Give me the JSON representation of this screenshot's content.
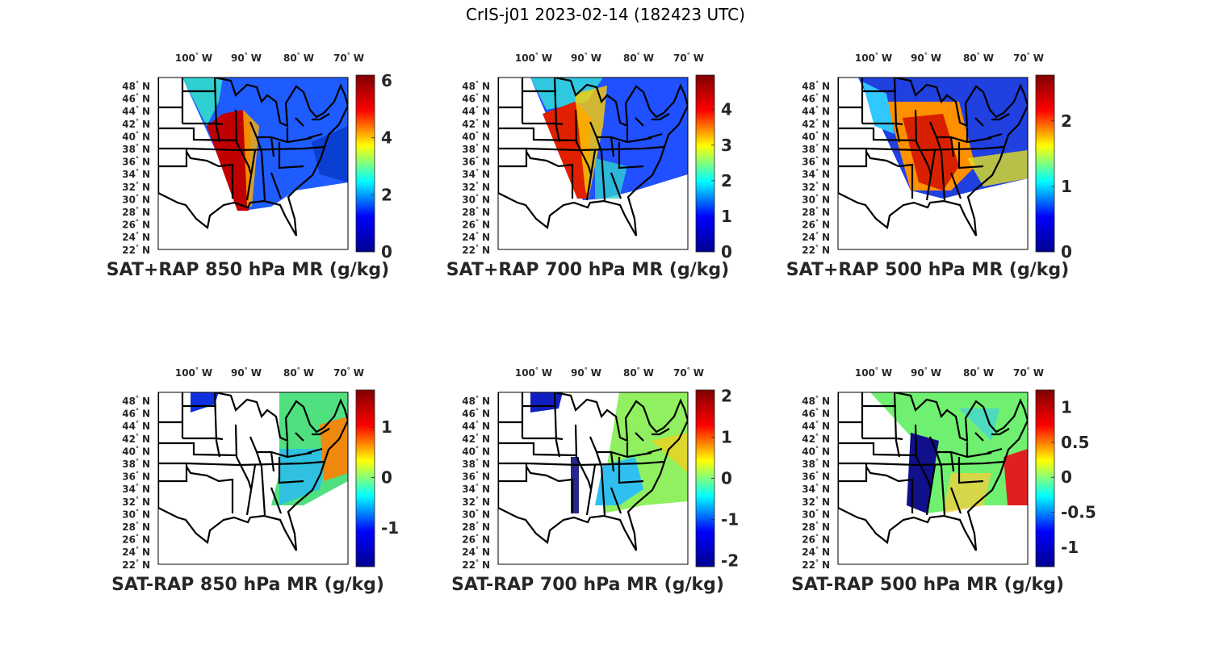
{
  "title": "CrIS-j01 2023-02-14 (182423 UTC)",
  "lon_ticks": [
    "100",
    "90",
    "80",
    "70"
  ],
  "lon_suffix": "W",
  "lat_ticks": [
    "48",
    "46",
    "44",
    "42",
    "40",
    "38",
    "36",
    "34",
    "32",
    "30",
    "28",
    "26",
    "24",
    "22"
  ],
  "lat_suffix": "N",
  "colormap": [
    "#800000",
    "#ff0000",
    "#ffff00",
    "#00ffff",
    "#0000ff",
    "#00008f"
  ],
  "panels": [
    {
      "label": "SAT+RAP 850 hPa MR (g/kg)",
      "colorbar": {
        "min": 0,
        "max": 6.2,
        "ticks": [
          "0",
          "2",
          "4",
          "6"
        ]
      }
    },
    {
      "label": "SAT+RAP 700 hPa MR (g/kg)",
      "colorbar": {
        "min": 0,
        "max": 4.97,
        "ticks": [
          "0",
          "1",
          "2",
          "3",
          "4"
        ]
      }
    },
    {
      "label": "SAT+RAP 500 hPa MR (g/kg)",
      "colorbar": {
        "min": 0,
        "max": 2.7,
        "ticks": [
          "0",
          "1",
          "2"
        ]
      }
    },
    {
      "label": "SAT-RAP 850 hPa MR (g/kg)",
      "colorbar": {
        "min": -1.77,
        "max": 1.74,
        "ticks": [
          "-1",
          "0",
          "1"
        ]
      }
    },
    {
      "label": "SAT-RAP 700 hPa MR (g/kg)",
      "colorbar": {
        "min": -2.15,
        "max": 2.15,
        "ticks": [
          "-2",
          "-1",
          "0",
          "1",
          "2"
        ]
      }
    },
    {
      "label": "SAT-RAP 500 hPa MR (g/kg)",
      "colorbar": {
        "min": -1.28,
        "max": 1.25,
        "ticks": [
          "-1",
          "-0.5",
          "0",
          "0.5",
          "1"
        ]
      }
    }
  ]
}
